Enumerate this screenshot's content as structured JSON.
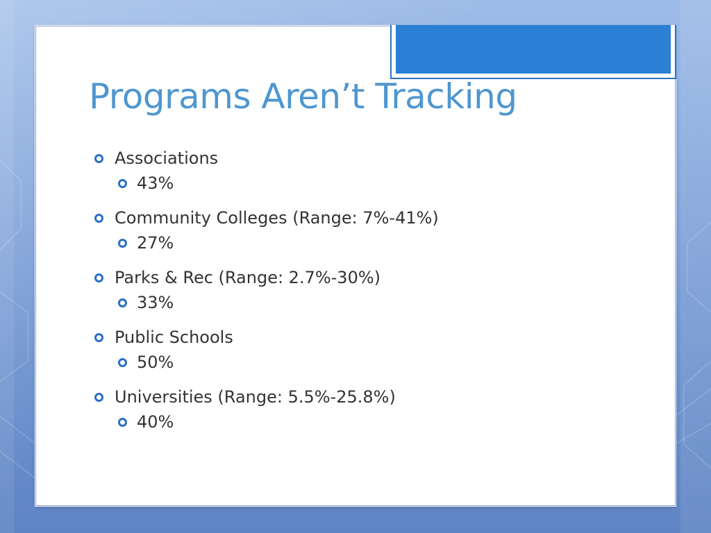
{
  "slide": {
    "title": "Programs Aren’t Tracking",
    "items": [
      {
        "label": "Associations",
        "value": "43%"
      },
      {
        "label": "Community Colleges (Range: 7%-41%)",
        "value": "27%"
      },
      {
        "label": "Parks & Rec (Range: 2.7%-30%)",
        "value": "33%"
      },
      {
        "label": "Public Schools",
        "value": "50%"
      },
      {
        "label": "Universities (Range: 5.5%-25.8%)",
        "value": "40%"
      }
    ],
    "bullet_icon": "hollow-circle-bullet",
    "colors": {
      "title": "#4f96cf",
      "accent": "#2b7fd4",
      "bullet": "#2a6fc4",
      "body_text": "#333333"
    }
  }
}
